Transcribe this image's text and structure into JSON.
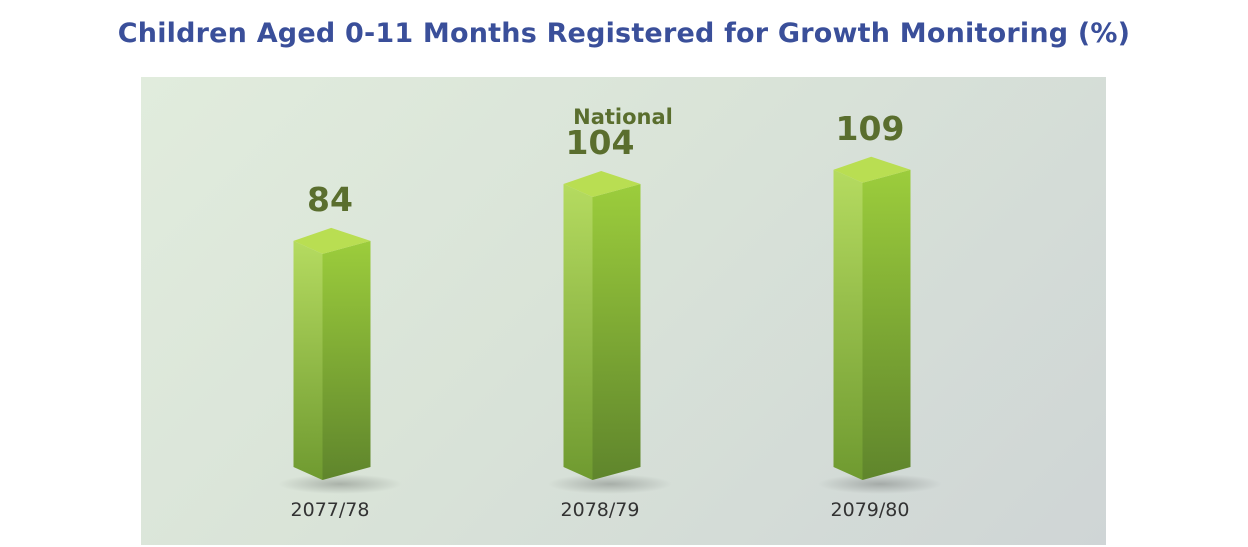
{
  "chart_data": {
    "type": "bar",
    "title": "Children Aged 0-11 Months Registered for Growth Monitoring (%)",
    "subtitle": "National",
    "categories": [
      "2077/78",
      "2078/79",
      "2079/80"
    ],
    "values": [
      84,
      104,
      109
    ],
    "ylim": [
      0,
      130
    ],
    "grid": false,
    "legend": "none",
    "colors": {
      "bar_front_light": "#9ccd3c",
      "bar_front_dark": "#5f852c",
      "bar_side_light": "#b5db60",
      "bar_side_dark": "#6f9a30",
      "bar_top": "#b9de52",
      "label_text": "#5a6e2e",
      "category_text": "#333333",
      "title_text": "#3a4f9a"
    }
  }
}
